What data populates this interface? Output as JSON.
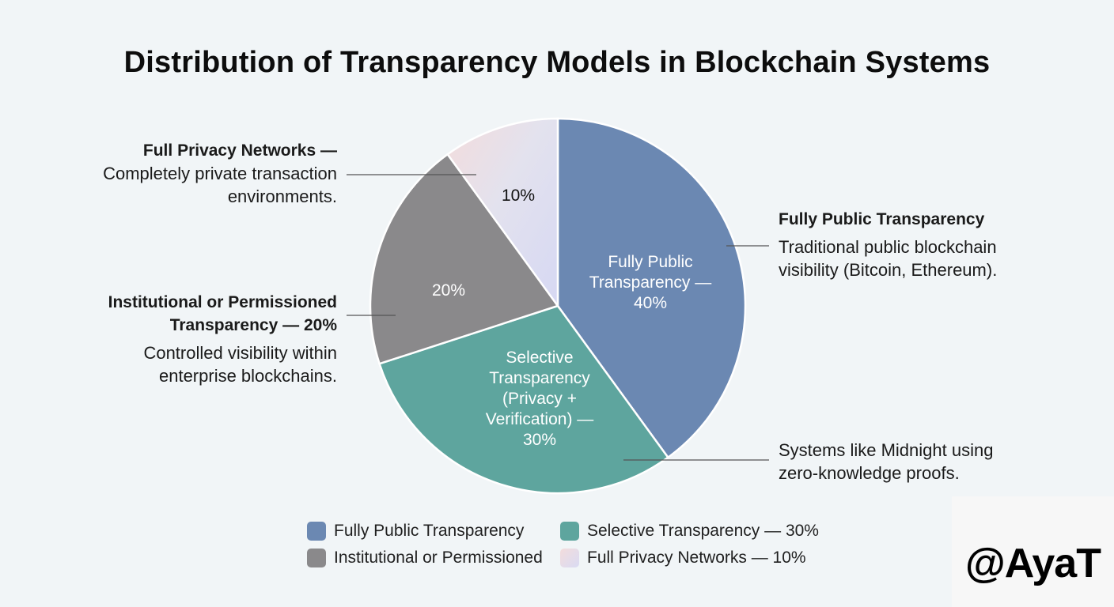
{
  "chart_data": {
    "type": "pie",
    "title": "Distribution of Transparency Models in Blockchain Systems",
    "slices": [
      {
        "name": "Fully Public Transparency",
        "value": 40,
        "color": "#6b88b2",
        "inner_label": [
          "Fully Public",
          "Transparency —",
          "40%"
        ],
        "callout_title": "Fully Public Transparency",
        "callout_text": [
          "Traditional public blockchain",
          "visibility (Bitcoin, Ethereum)."
        ]
      },
      {
        "name": "Selective Transparency (Privacy + Verification)",
        "value": 30,
        "color": "#5ea59e",
        "inner_label": [
          "Selective",
          "Transparency",
          "(Privacy +",
          "Verification) —",
          "30%"
        ],
        "callout_title": "",
        "callout_text": [
          "Systems like Midnight using",
          "zero-knowledge proofs."
        ]
      },
      {
        "name": "Institutional or Permissioned Transparency",
        "value": 20,
        "color": "#8a898b",
        "inner_label": [
          "20%"
        ],
        "callout_title": [
          "Institutional or Permissioned",
          "Transparency — 20%"
        ],
        "callout_text": [
          "Controlled visibility within",
          "enterprise blockchains."
        ]
      },
      {
        "name": "Full Privacy Networks",
        "value": 10,
        "color": "#e5dcec",
        "inner_label": [
          "10%"
        ],
        "callout_title": "Full Privacy Networks —",
        "callout_text": [
          "Completely private transaction",
          "environments."
        ]
      }
    ],
    "legend": [
      {
        "label": "Fully Public Transparency",
        "color": "#6b88b2"
      },
      {
        "label": "Selective Transparency — 30%",
        "color": "#5ea59e"
      },
      {
        "label": "Institutional or Permissioned",
        "color": "#8a898b"
      },
      {
        "label": "Full Privacy Networks — 10%",
        "color": "#e8dcea"
      }
    ]
  },
  "watermark": "@AyaT"
}
